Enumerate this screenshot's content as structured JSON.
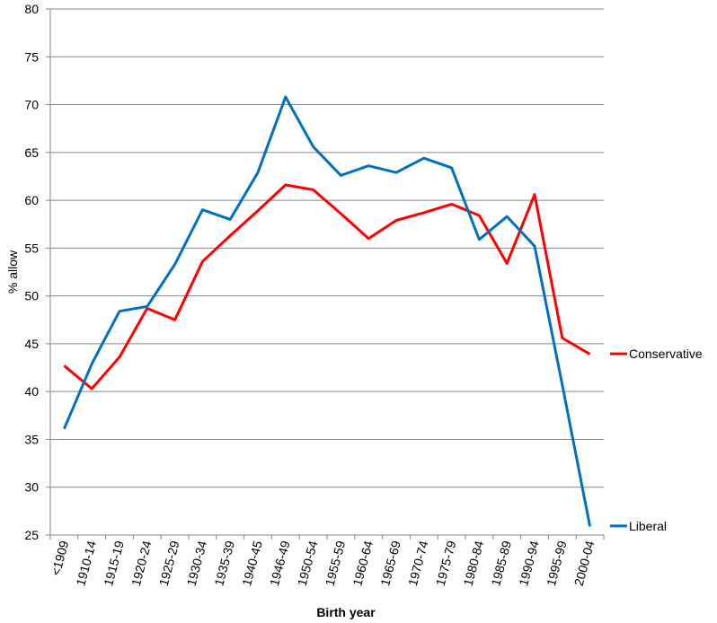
{
  "chart_data": {
    "type": "line",
    "title": "",
    "xlabel": "Birth year",
    "ylabel": "% allow",
    "ylim": [
      25,
      80
    ],
    "yticks": [
      25,
      30,
      35,
      40,
      45,
      50,
      55,
      60,
      65,
      70,
      75,
      80
    ],
    "grid": "horizontal",
    "legend": "right",
    "categories": [
      "<1909",
      "1910-14",
      "1915-19",
      "1920-24",
      "1925-29",
      "1930-34",
      "1935-39",
      "1940-45",
      "1946-49",
      "1950-54",
      "1955-59",
      "1960-64",
      "1965-69",
      "1970-74",
      "1975-79",
      "1980-84",
      "1985-89",
      "1990-94",
      "1995-99",
      "2000-04"
    ],
    "series": [
      {
        "name": "Conservative",
        "color": "#ff0000",
        "values": [
          42.7,
          40.3,
          43.6,
          48.7,
          47.5,
          53.6,
          56.3,
          58.9,
          61.6,
          61.1,
          58.6,
          56.0,
          57.9,
          58.7,
          59.6,
          58.4,
          53.4,
          60.6,
          45.6,
          43.9
        ]
      },
      {
        "name": "Liberal",
        "color": "#0070c0",
        "values": [
          36.1,
          42.9,
          48.4,
          48.9,
          53.3,
          59.0,
          58.0,
          62.9,
          70.8,
          65.6,
          62.6,
          63.6,
          62.9,
          64.4,
          63.4,
          55.9,
          58.3,
          55.2,
          40.7,
          25.9
        ]
      }
    ]
  }
}
